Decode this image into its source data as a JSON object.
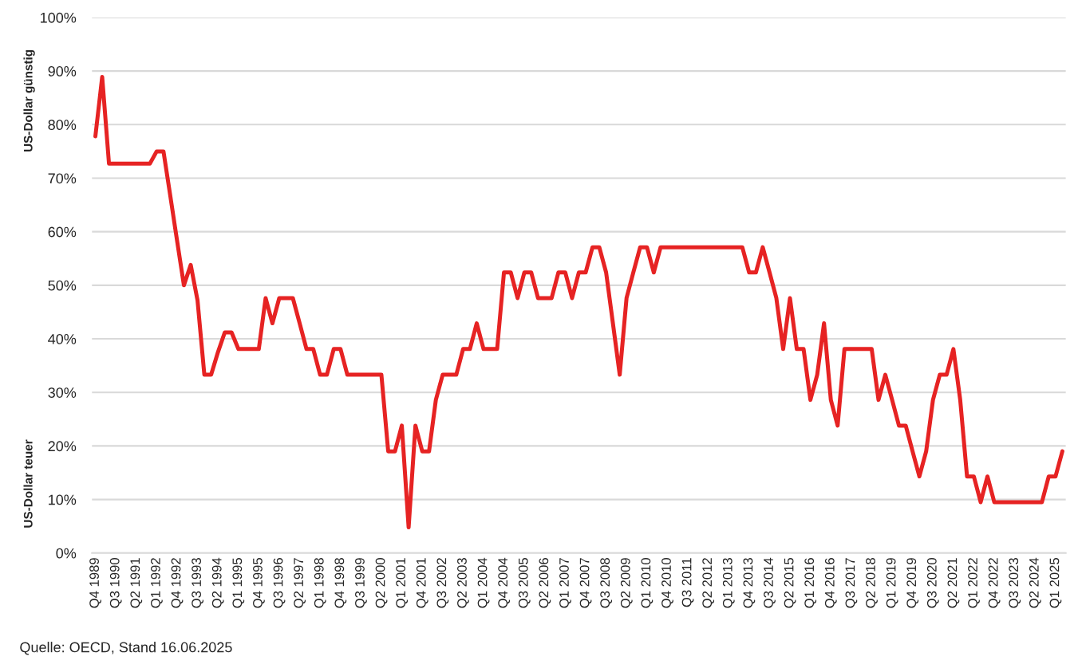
{
  "chart_data": {
    "type": "line",
    "categories": [
      "Q4 1989",
      null,
      null,
      "Q3 1990",
      null,
      null,
      "Q2 1991",
      null,
      null,
      "Q1 1992",
      null,
      null,
      "Q4 1992",
      null,
      null,
      "Q3 1993",
      null,
      null,
      "Q2 1994",
      null,
      null,
      "Q1 1995",
      null,
      null,
      "Q4 1995",
      null,
      null,
      "Q3 1996",
      null,
      null,
      "Q2 1997",
      null,
      null,
      "Q1 1998",
      null,
      null,
      "Q4 1998",
      null,
      null,
      "Q3 1999",
      null,
      null,
      "Q2 2000",
      null,
      null,
      "Q1 2001",
      null,
      null,
      "Q4 2001",
      null,
      null,
      "Q3 2002",
      null,
      null,
      "Q2 2003",
      null,
      null,
      "Q1 2004",
      null,
      null,
      "Q4 2004",
      null,
      null,
      "Q3 2005",
      null,
      null,
      "Q2 2006",
      null,
      null,
      "Q1 2007",
      null,
      null,
      "Q4 2007",
      null,
      null,
      "Q3 2008",
      null,
      null,
      "Q2 2009",
      null,
      null,
      "Q1 2010",
      null,
      null,
      "Q4 2010",
      null,
      null,
      "Q3 2011",
      null,
      null,
      "Q2 2012",
      null,
      null,
      "Q1 2013",
      null,
      null,
      "Q4 2013",
      null,
      null,
      "Q3 2014",
      null,
      null,
      "Q2 2015",
      null,
      null,
      "Q1 2016",
      null,
      null,
      "Q4 2016",
      null,
      null,
      "Q3 2017",
      null,
      null,
      "Q2 2018",
      null,
      null,
      "Q1 2019",
      null,
      null,
      "Q4 2019",
      null,
      null,
      "Q3 2020",
      null,
      null,
      "Q2 2021",
      null,
      null,
      "Q1 2022",
      null,
      null,
      "Q4 2022",
      null,
      null,
      "Q3 2023",
      null,
      null,
      "Q2 2024",
      null,
      null,
      "Q1 2025",
      null
    ],
    "series": [
      {
        "color": "#e62323",
        "values": [
          77.8,
          88.9,
          72.7,
          72.7,
          72.7,
          72.7,
          72.7,
          72.7,
          72.7,
          75,
          75,
          66.7,
          58.3,
          50,
          53.8,
          47.2,
          33.3,
          33.3,
          37.5,
          41.2,
          41.2,
          38.1,
          38.1,
          38.1,
          38.1,
          47.6,
          42.9,
          47.6,
          47.6,
          47.6,
          42.9,
          38.1,
          38.1,
          33.3,
          33.3,
          38.1,
          38.1,
          33.3,
          33.3,
          33.3,
          33.3,
          33.3,
          33.3,
          19,
          19,
          23.8,
          4.8,
          23.8,
          19,
          19,
          28.6,
          33.3,
          33.3,
          33.3,
          38.1,
          38.1,
          42.9,
          38.1,
          38.1,
          38.1,
          52.4,
          52.4,
          47.6,
          52.4,
          52.4,
          47.6,
          47.6,
          47.6,
          52.4,
          52.4,
          47.6,
          52.4,
          52.4,
          57.1,
          57.1,
          52.4,
          42.9,
          33.3,
          47.6,
          52.4,
          57.1,
          57.1,
          52.4,
          57.1,
          57.1,
          57.1,
          57.1,
          57.1,
          57.1,
          57.1,
          57.1,
          57.1,
          57.1,
          57.1,
          57.1,
          57.1,
          52.4,
          52.4,
          57.1,
          52.4,
          47.6,
          38.1,
          47.6,
          38.1,
          38.1,
          28.6,
          33.3,
          42.9,
          28.6,
          23.8,
          38.1,
          38.1,
          38.1,
          38.1,
          38.1,
          28.6,
          33.3,
          28.6,
          23.8,
          23.8,
          19,
          14.3,
          19,
          28.6,
          33.3,
          33.3,
          38.1,
          28.6,
          14.3,
          14.3,
          9.5,
          14.3,
          9.5,
          9.5,
          9.5,
          9.5,
          9.5,
          9.5,
          9.5,
          9.5,
          14.3,
          14.3,
          19
        ]
      }
    ],
    "ylim": [
      0,
      100
    ],
    "yticks": [
      {
        "value": 0,
        "label": "0%"
      },
      {
        "value": 10,
        "label": "10%"
      },
      {
        "value": 20,
        "label": "20%"
      },
      {
        "value": 30,
        "label": "30%"
      },
      {
        "value": 40,
        "label": "40%"
      },
      {
        "value": 50,
        "label": "50%"
      },
      {
        "value": 60,
        "label": "60%"
      },
      {
        "value": 70,
        "label": "70%"
      },
      {
        "value": 80,
        "label": "80%"
      },
      {
        "value": 90,
        "label": "90%"
      },
      {
        "value": 100,
        "label": "100%"
      }
    ],
    "grid": "y",
    "marker": "none",
    "line_style": "solid",
    "annotations": [
      "US-Dollar günstig",
      "US-Dollar teuer",
      "Quelle: OECD, Stand 16.06.2025"
    ]
  }
}
